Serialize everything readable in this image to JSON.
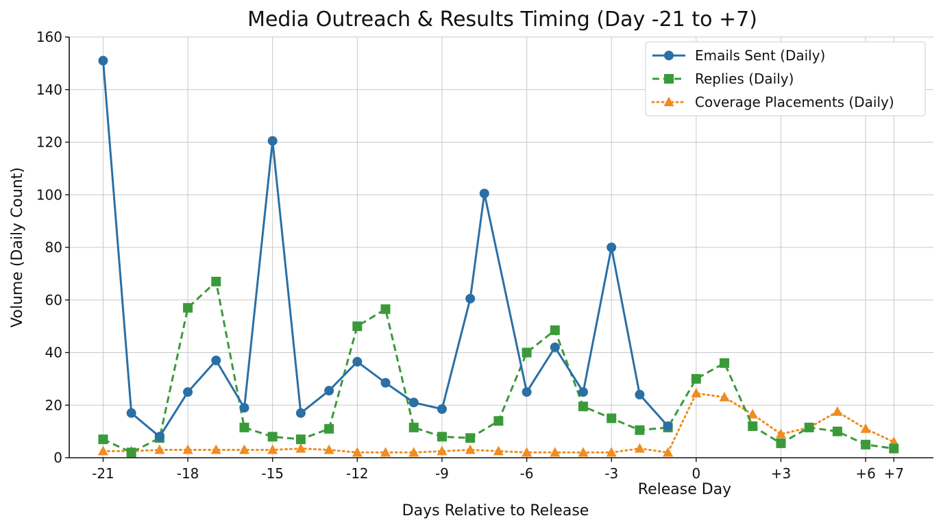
{
  "chart_data": {
    "type": "line",
    "title": "Media Outreach & Results Timing (Day -21 to +7)",
    "xlabel": "Days Relative to Release",
    "ylabel": "Volume (Daily Count)",
    "annotation": "Release Day",
    "xlim": [
      -22.2,
      8.4
    ],
    "ylim": [
      0,
      160
    ],
    "yticks": [
      0,
      20,
      40,
      60,
      80,
      100,
      120,
      140,
      160
    ],
    "xticks": [
      {
        "value": -21,
        "label": "-21"
      },
      {
        "value": -18,
        "label": "-18"
      },
      {
        "value": -15,
        "label": "-15"
      },
      {
        "value": -12,
        "label": "-12"
      },
      {
        "value": -9,
        "label": "-9"
      },
      {
        "value": -6,
        "label": "-6"
      },
      {
        "value": -3,
        "label": "-3"
      },
      {
        "value": 0,
        "label": "0"
      },
      {
        "value": 3,
        "label": "+3"
      },
      {
        "value": 6,
        "label": "+6"
      },
      {
        "value": 7,
        "label": "+7"
      }
    ],
    "grid": true,
    "legend_position": "top-right",
    "x": [
      -21,
      -20,
      -19,
      -18,
      -17,
      -16,
      -15,
      -14,
      -13,
      -12,
      -11,
      -10,
      -9,
      -8,
      -7,
      -6,
      -5,
      -4,
      -3,
      -2,
      -1,
      0,
      1,
      2,
      3,
      4,
      5,
      6,
      7
    ],
    "series": [
      {
        "name": "Emails Sent (Daily)",
        "color": "#2a6fa5",
        "marker": "circle",
        "line": "solid",
        "x": [
          -21,
          -20,
          -19,
          -18,
          -17,
          -16,
          -15,
          -14,
          -13,
          -12,
          -11,
          -10,
          -9,
          -8,
          -7.5,
          -6,
          -5,
          -4,
          -3,
          -2,
          -1
        ],
        "values": [
          151,
          17,
          8,
          25,
          37,
          19,
          120.5,
          17,
          25.5,
          36.5,
          28.5,
          21,
          18.5,
          60.5,
          100.5,
          25,
          42,
          25,
          80,
          24,
          12
        ]
      },
      {
        "name": "Replies (Daily)",
        "color": "#3a9a3a",
        "marker": "square",
        "line": "dashed",
        "x": [
          -21,
          -20,
          -19,
          -18,
          -17,
          -16,
          -15,
          -14,
          -13,
          -12,
          -11,
          -10,
          -9,
          -8,
          -7,
          -6,
          -5,
          -4,
          -3,
          -2,
          -1,
          0,
          1,
          2,
          3,
          4,
          5,
          6,
          7
        ],
        "values": [
          7,
          2,
          7.5,
          57,
          67,
          11.5,
          8,
          7,
          11,
          50,
          56.5,
          11.5,
          8,
          7.5,
          14,
          40,
          48.5,
          19.5,
          15,
          10.5,
          11.5,
          30,
          36,
          12,
          5.5,
          11.5,
          10,
          5,
          3.5
        ]
      },
      {
        "name": "Coverage Placements (Daily)",
        "color": "#f08c20",
        "marker": "triangle",
        "line": "dotted",
        "x": [
          -21,
          -20,
          -19,
          -18,
          -17,
          -16,
          -15,
          -14,
          -13,
          -12,
          -11,
          -10,
          -9,
          -8,
          -7,
          -6,
          -5,
          -4,
          -3,
          -2,
          -1,
          0,
          1,
          2,
          3,
          4,
          5,
          6,
          7
        ],
        "values": [
          2.5,
          2.5,
          3,
          3,
          3,
          3,
          3,
          3.5,
          3,
          2,
          2,
          2,
          2.5,
          3,
          2.5,
          2,
          2,
          2,
          2,
          3.5,
          2,
          24.5,
          23,
          16.5,
          9,
          11.5,
          17.5,
          11,
          6
        ]
      }
    ]
  }
}
